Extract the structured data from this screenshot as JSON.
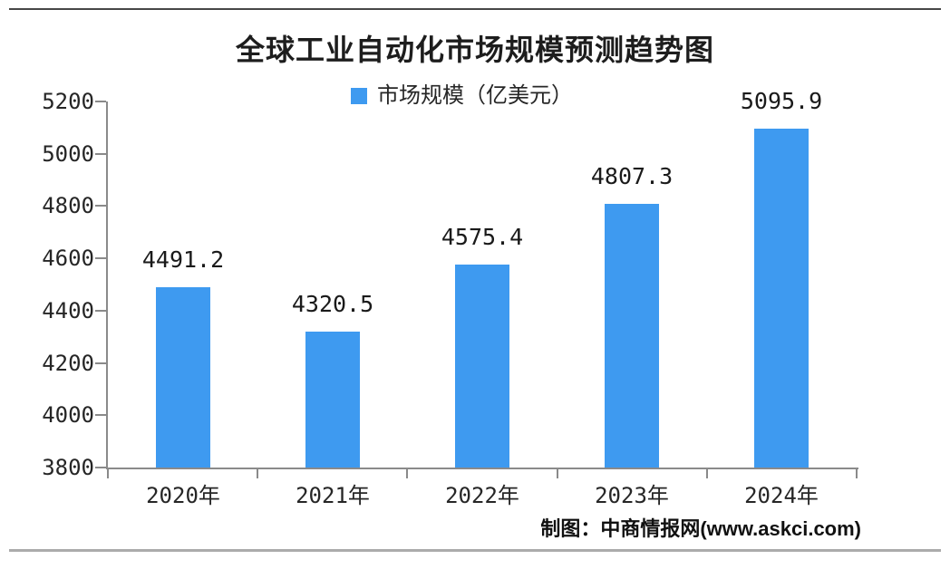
{
  "page": {
    "title": "全球工业自动化市场规模预测趋势图",
    "source_note": "制图：中商情报网(www.askci.com)"
  },
  "legend": {
    "label": "市场规模（亿美元）"
  },
  "colors": {
    "bar": "#3E9AF0",
    "axis": "#8A8A8A",
    "title_text": "#1D1D1D",
    "label_text": "#262626"
  },
  "chart_data": {
    "type": "bar",
    "title": "全球工业自动化市场规模预测趋势图",
    "series_name": "市场规模（亿美元）",
    "categories": [
      "2020年",
      "2021年",
      "2022年",
      "2023年",
      "2024年"
    ],
    "values": [
      4491.2,
      4320.5,
      4575.4,
      4807.3,
      5095.9
    ],
    "value_labels": [
      "4491.2",
      "4320.5",
      "4575.4",
      "4807.3",
      "5095.9"
    ],
    "xlabel": "",
    "ylabel": "",
    "ylim": [
      3800,
      5200
    ],
    "y_ticks": [
      3800,
      4000,
      4200,
      4400,
      4600,
      4800,
      5000,
      5200
    ],
    "grid": false,
    "legend_position": "top-center",
    "bar_color": "#3E9AF0",
    "source": "制图：中商情报网(www.askci.com)"
  }
}
